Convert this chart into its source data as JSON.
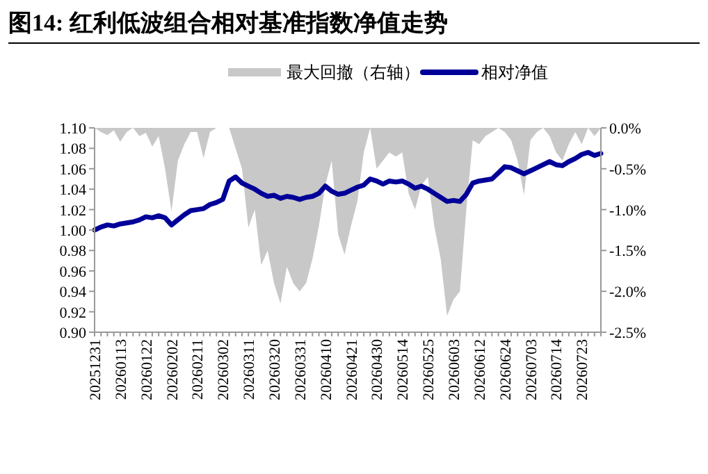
{
  "chart_data": {
    "type": "line",
    "title": "图14: 红利低波组合相对基准指数净值走势",
    "categories": [
      "20251231",
      null,
      null,
      null,
      "20260113",
      null,
      null,
      null,
      "20260122",
      null,
      null,
      null,
      "20260202",
      null,
      null,
      null,
      "20260211",
      null,
      null,
      null,
      "20260302",
      null,
      null,
      null,
      "20260311",
      null,
      null,
      null,
      "20260320",
      null,
      null,
      null,
      "20260331",
      null,
      null,
      null,
      "20260410",
      null,
      null,
      null,
      "20260421",
      null,
      null,
      null,
      "20260430",
      null,
      null,
      null,
      "20260514",
      null,
      null,
      null,
      "20260525",
      null,
      null,
      null,
      "20260603",
      null,
      null,
      null,
      "20260612",
      null,
      null,
      null,
      "20260624",
      null,
      null,
      null,
      "20260703",
      null,
      null,
      null,
      "20260714",
      null,
      null,
      null,
      "20260723",
      null,
      null,
      null
    ],
    "series": [
      {
        "name": "最大回撤（右轴）",
        "type": "area",
        "axis": "y2",
        "color": "#c8c8c8",
        "values": [
          0,
          -0.05,
          -0.09,
          -0.03,
          -0.17,
          -0.05,
          0,
          -0.1,
          -0.06,
          -0.23,
          -0.1,
          -0.5,
          -1.02,
          -0.4,
          -0.2,
          -0.05,
          -0.05,
          -0.37,
          -0.05,
          0,
          0,
          0,
          -0.25,
          -0.5,
          -1.22,
          -1.0,
          -1.68,
          -1.5,
          -1.9,
          -2.15,
          -1.7,
          -1.9,
          -2.0,
          -1.9,
          -1.6,
          -1.2,
          -0.7,
          -0.4,
          -1.3,
          -1.55,
          -1.2,
          -0.9,
          -0.3,
          0,
          -0.5,
          -0.4,
          -0.3,
          -0.35,
          -0.3,
          -0.8,
          -1.0,
          -0.7,
          -0.6,
          -1.2,
          -1.6,
          -2.3,
          -2.1,
          -2.0,
          -1.0,
          -0.15,
          -0.2,
          -0.1,
          -0.05,
          0,
          -0.05,
          -0.15,
          -0.4,
          -0.82,
          -0.15,
          -0.05,
          0,
          -0.1,
          -0.3,
          -0.4,
          -0.2,
          -0.05,
          -0.2,
          0,
          -0.1,
          0
        ]
      },
      {
        "name": "相对净值",
        "color": "#000099",
        "values": [
          1.0,
          1.003,
          1.005,
          1.004,
          1.006,
          1.007,
          1.008,
          1.01,
          1.013,
          1.012,
          1.014,
          1.012,
          1.005,
          1.01,
          1.015,
          1.019,
          1.02,
          1.021,
          1.025,
          1.027,
          1.03,
          1.048,
          1.052,
          1.046,
          1.043,
          1.04,
          1.036,
          1.033,
          1.034,
          1.031,
          1.033,
          1.032,
          1.03,
          1.032,
          1.033,
          1.036,
          1.043,
          1.038,
          1.035,
          1.036,
          1.039,
          1.042,
          1.044,
          1.05,
          1.048,
          1.045,
          1.048,
          1.047,
          1.048,
          1.045,
          1.041,
          1.043,
          1.04,
          1.036,
          1.032,
          1.028,
          1.029,
          1.028,
          1.035,
          1.046,
          1.048,
          1.049,
          1.05,
          1.056,
          1.062,
          1.061,
          1.058,
          1.055,
          1.058,
          1.061,
          1.064,
          1.067,
          1.064,
          1.063,
          1.067,
          1.07,
          1.074,
          1.076,
          1.073,
          1.075
        ]
      }
    ],
    "ylim": [
      0.9,
      1.1
    ],
    "yticks": [
      {
        "value": 0.9,
        "label": "0.90"
      },
      {
        "value": 0.92,
        "label": "0.92"
      },
      {
        "value": 0.94,
        "label": "0.94"
      },
      {
        "value": 0.96,
        "label": "0.96"
      },
      {
        "value": 0.98,
        "label": "0.98"
      },
      {
        "value": 1.0,
        "label": "1.00"
      },
      {
        "value": 1.02,
        "label": "1.02"
      },
      {
        "value": 1.04,
        "label": "1.04"
      },
      {
        "value": 1.06,
        "label": "1.06"
      },
      {
        "value": 1.08,
        "label": "1.08"
      },
      {
        "value": 1.1,
        "label": "1.10"
      }
    ],
    "y2lim": [
      -2.5,
      0
    ],
    "y2ticks": [
      {
        "value": -2.5,
        "label": "-2.5%"
      },
      {
        "value": -2.0,
        "label": "-2.0%"
      },
      {
        "value": -1.5,
        "label": "-1.5%"
      },
      {
        "value": -1.0,
        "label": "-1.0%"
      },
      {
        "value": -0.5,
        "label": "-0.5%"
      },
      {
        "value": 0,
        "label": "0.0%"
      }
    ],
    "legend": "top",
    "grid": false
  }
}
